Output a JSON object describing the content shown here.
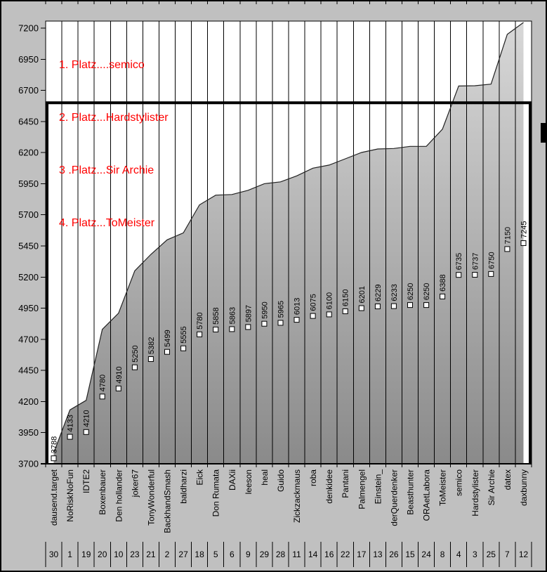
{
  "window": {
    "background_color": "#c0c0c0",
    "border_color": "#000000"
  },
  "legend": {
    "color": "#ff0000",
    "lines": [
      "1. Platz....semico",
      "2. Platz...Hardstylister",
      "3 .Platz...Sir Archie",
      "4. Platz...ToMeister"
    ]
  },
  "chart_data": {
    "type": "area",
    "title": "",
    "xlabel": "",
    "ylabel": "",
    "categories": [
      "dausend.target",
      "NoRiskNoFun",
      "IDTE2",
      "Boxenbauer",
      "Den hollander",
      "joker67",
      "TonyWonderful",
      "BackhandSmash",
      "baldharzi",
      "Eick",
      "Don Rumata",
      "DAXii",
      "leeson",
      "heal",
      "Guido",
      "Zickzackmaus",
      "roba",
      "denkidee",
      "Pantani",
      "Palmengel",
      "Einstein_",
      "derQuerdenker",
      "Beasthunter",
      "ORAetLabora",
      "ToMeister",
      "semico",
      "Hardstylister",
      "Sir Archie",
      "datex",
      "daxbunny"
    ],
    "values": [
      3788,
      4133,
      4210,
      4780,
      4910,
      5250,
      5382,
      5499,
      5555,
      5780,
      5858,
      5863,
      5897,
      5950,
      5965,
      6013,
      6075,
      6100,
      6150,
      6201,
      6229,
      6233,
      6250,
      6250,
      6388,
      6735,
      6737,
      6750,
      7150,
      7245
    ],
    "rank_row": [
      "30",
      "1",
      "19",
      "20",
      "10",
      "23",
      "21",
      "2",
      "27",
      "18",
      "5",
      "6",
      "9",
      "29",
      "28",
      "11",
      "14",
      "16",
      "22",
      "17",
      "13",
      "26",
      "15",
      "24",
      "8",
      "4",
      "3",
      "25",
      "7",
      "12"
    ],
    "target_line": {
      "label": "dausend.target",
      "value": 6600,
      "color": "#000000",
      "thickness": 4
    },
    "ylim": [
      3700,
      7200
    ],
    "ytick_step": 250,
    "ytick_labels": [
      "3700",
      "3950",
      "4200",
      "4450",
      "4700",
      "4950",
      "5200",
      "5450",
      "5700",
      "5950",
      "6200",
      "6450",
      "6700",
      "6950",
      "7200"
    ],
    "grid": "vertical-only",
    "legend_position": "top-left-inside",
    "area_fill_top": "#d8d8d8",
    "area_fill_bottom": "#8a8a8a",
    "edge_line_color": "#222222",
    "marker": {
      "shape": "square",
      "fill": "#ffffff",
      "border": "#000000"
    },
    "data_labels": "rotated-90-above-marker",
    "secondary_axis_ratio": 0.5
  }
}
